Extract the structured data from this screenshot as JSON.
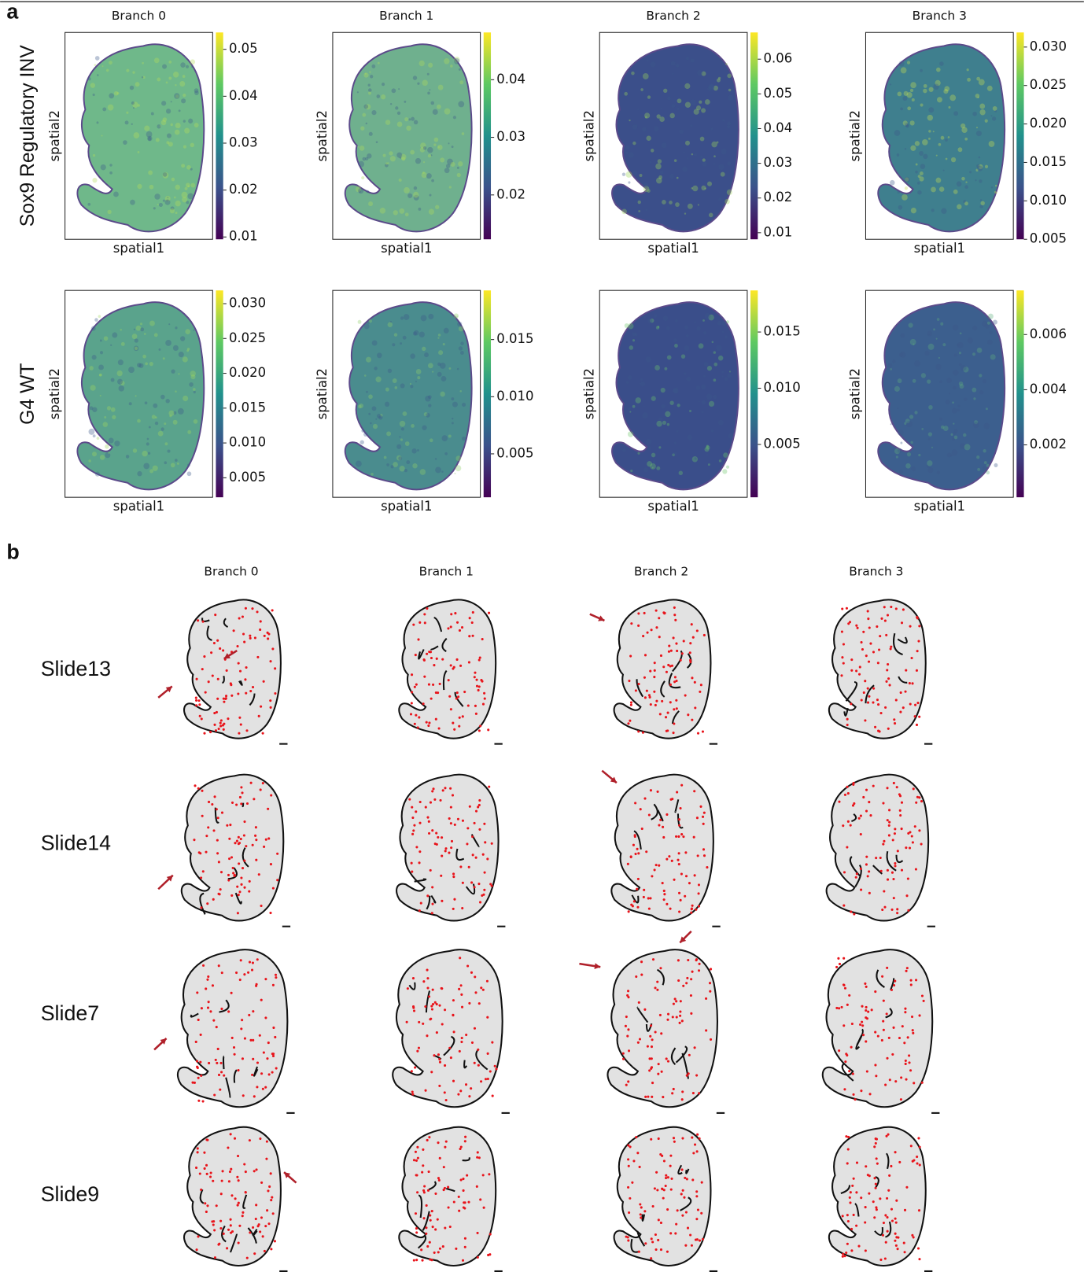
{
  "panel_a": {
    "label": "a",
    "column_titles": [
      "Branch 0",
      "Branch 1",
      "Branch 2",
      "Branch 3"
    ],
    "row_labels": [
      "Sox9 Regulatory INV",
      "G4 WT"
    ],
    "x_label": "spatial1",
    "y_label": "spatial2",
    "plots": [
      [
        {
          "clim": [
            0.0095,
            0.0536
          ],
          "ticks": [
            0.01,
            0.02,
            0.03,
            0.04,
            0.05
          ]
        },
        {
          "clim": [
            0.0123,
            0.0482
          ],
          "ticks": [
            0.02,
            0.03,
            0.04
          ]
        },
        {
          "clim": [
            0.0081,
            0.0677
          ],
          "ticks": [
            0.01,
            0.02,
            0.03,
            0.04,
            0.05,
            0.06
          ]
        },
        {
          "clim": [
            0.005,
            0.0319
          ],
          "ticks": [
            0.005,
            {
              "value": 0.01,
              "label": "0.010"
            },
            0.015,
            {
              "value": 0.02,
              "label": "0.020"
            },
            0.025,
            {
              "value": 0.03,
              "label": "0.030"
            }
          ]
        }
      ],
      [
        {
          "clim": [
            0.0022,
            0.0319
          ],
          "ticks": [
            0.005,
            {
              "value": 0.01,
              "label": "0.010"
            },
            0.015,
            {
              "value": 0.02,
              "label": "0.020"
            },
            0.025,
            {
              "value": 0.03,
              "label": "0.030"
            }
          ]
        },
        {
          "clim": [
            0.0012,
            0.0193
          ],
          "ticks": [
            0.005,
            {
              "value": 0.01,
              "label": "0.010"
            },
            0.015
          ]
        },
        {
          "clim": [
            0.0003,
            0.0187
          ],
          "ticks": [
            0.005,
            {
              "value": 0.01,
              "label": "0.010"
            },
            0.015
          ]
        },
        {
          "clim": [
            0.0001,
            0.0076
          ],
          "ticks": [
            0.002,
            0.004,
            0.006
          ]
        }
      ]
    ]
  },
  "panel_b": {
    "label": "b",
    "column_titles": [
      "Branch 0",
      "Branch 1",
      "Branch 2",
      "Branch 3"
    ],
    "row_labels": [
      "Slide13",
      "Slide14",
      "Slide7",
      "Slide9"
    ]
  }
}
